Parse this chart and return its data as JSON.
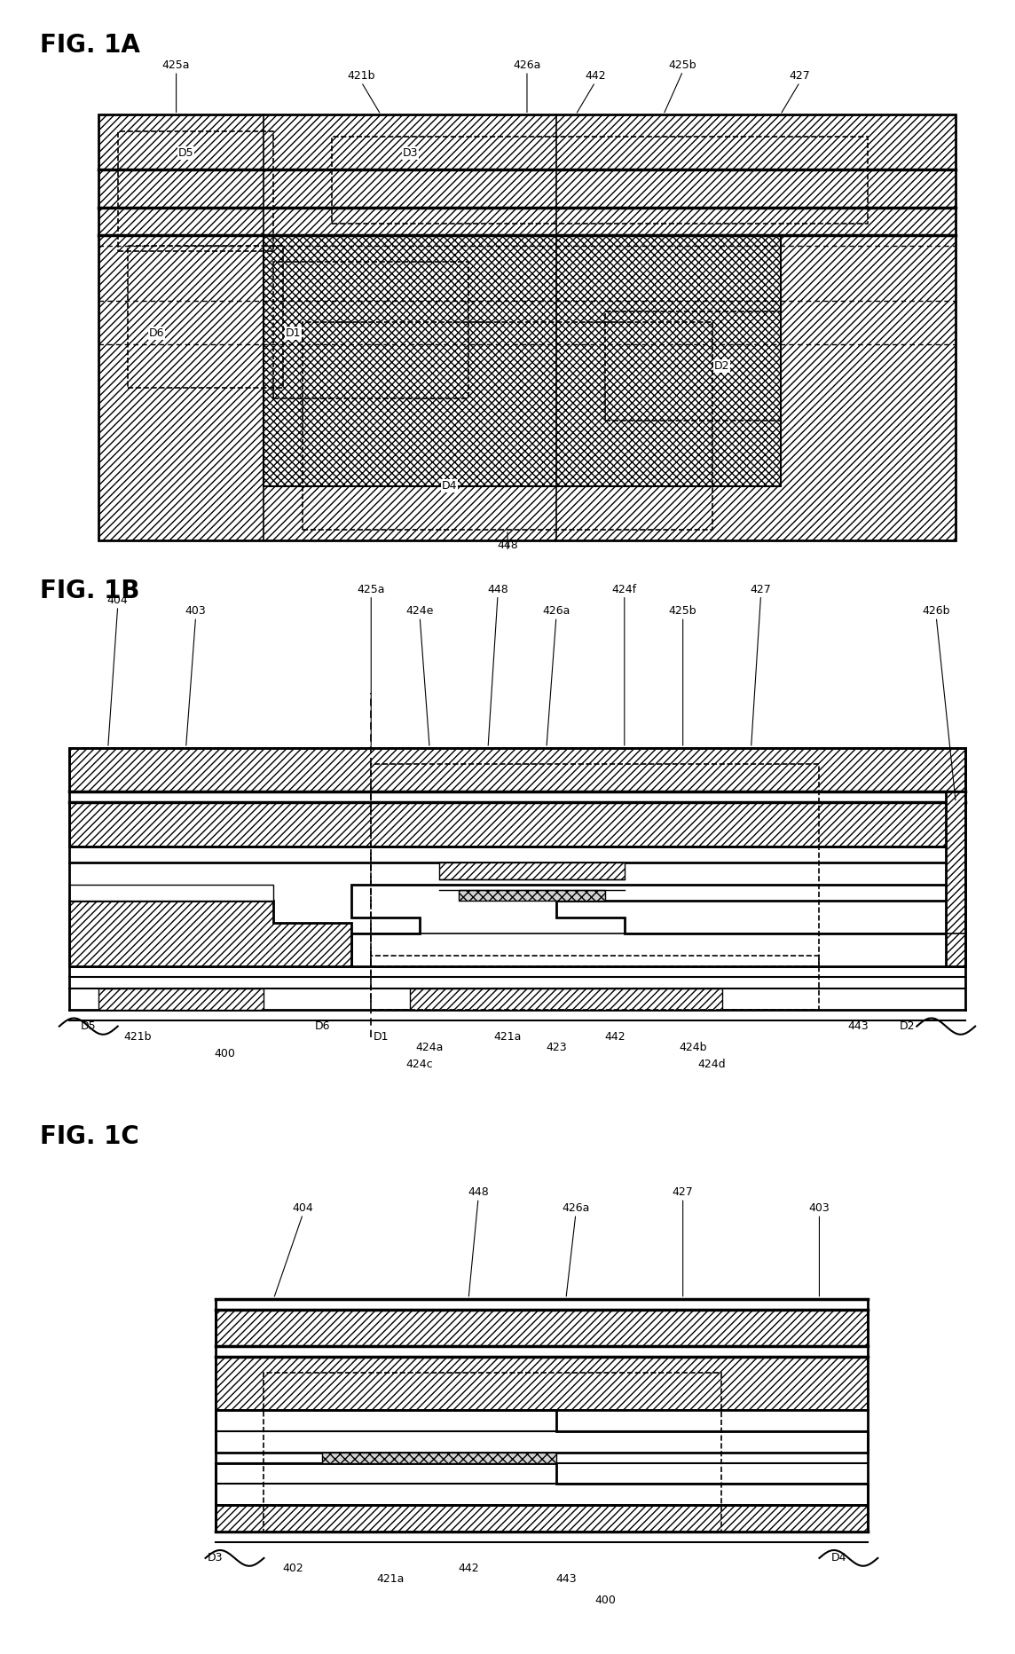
{
  "fig_title_1a": "FIG. 1A",
  "fig_title_1b": "FIG. 1B",
  "fig_title_1c": "FIG. 1C",
  "background": "#ffffff",
  "fig_size": [
    11.44,
    18.64
  ],
  "dpi": 100
}
